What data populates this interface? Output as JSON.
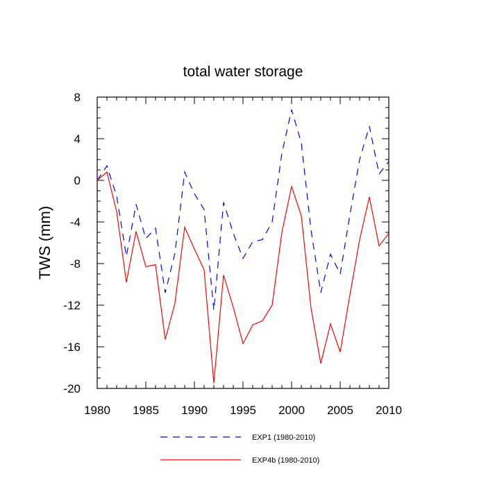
{
  "chart_data": {
    "type": "line",
    "title": "total water storage",
    "xlabel": "",
    "ylabel": "TWS  (mm)",
    "xlim": [
      1980,
      2010
    ],
    "ylim": [
      -20,
      8
    ],
    "xticks": [
      1980,
      1985,
      1990,
      1995,
      2000,
      2005,
      2010
    ],
    "yticks": [
      8,
      4,
      0,
      -4,
      -8,
      -12,
      -16,
      -20
    ],
    "grid": false,
    "legend_position": "bottom",
    "x": [
      1980,
      1981,
      1982,
      1983,
      1984,
      1985,
      1986,
      1987,
      1988,
      1989,
      1990,
      1991,
      1992,
      1993,
      1994,
      1995,
      1996,
      1997,
      1998,
      1999,
      2000,
      2001,
      2002,
      2003,
      2004,
      2005,
      2006,
      2007,
      2008,
      2009,
      2010
    ],
    "series": [
      {
        "name": "EXP1 (1980-2010)",
        "color": "#0000ff",
        "dash": "dashed",
        "values": [
          0.0,
          1.4,
          -1.5,
          -7.3,
          -2.3,
          -5.6,
          -4.6,
          -10.8,
          -7.0,
          0.8,
          -1.3,
          -2.8,
          -12.5,
          -2.1,
          -5.1,
          -7.5,
          -5.9,
          -5.7,
          -4.0,
          2.6,
          6.8,
          3.6,
          -4.8,
          -10.8,
          -7.1,
          -9.0,
          -3.3,
          2.0,
          5.2,
          0.6,
          1.8
        ]
      },
      {
        "name": "EXP4b (1980-2010)",
        "color": "#ff0000",
        "dash": "solid",
        "values": [
          0.0,
          0.8,
          -3.0,
          -9.8,
          -4.9,
          -8.3,
          -8.1,
          -15.3,
          -11.8,
          -4.5,
          -6.6,
          -8.6,
          -19.5,
          -9.1,
          -12.2,
          -15.7,
          -13.9,
          -13.5,
          -12.0,
          -5.0,
          -0.6,
          -3.4,
          -12.3,
          -17.6,
          -13.8,
          -16.5,
          -11.0,
          -5.7,
          -1.6,
          -6.3,
          -5.1
        ]
      }
    ]
  }
}
